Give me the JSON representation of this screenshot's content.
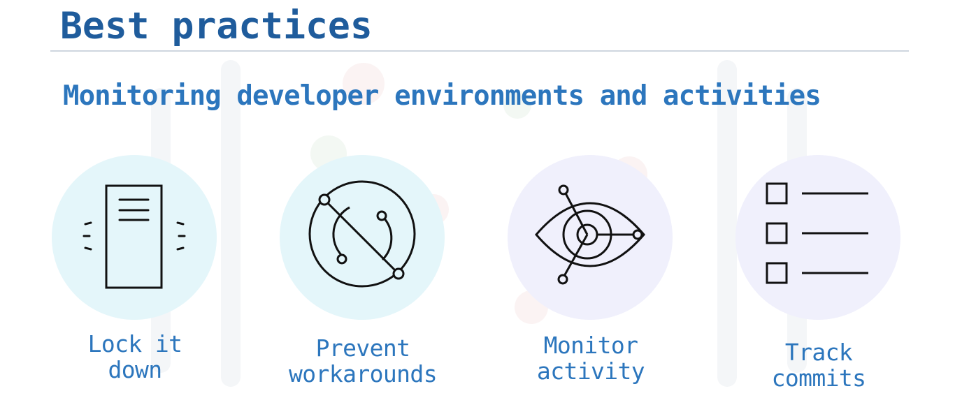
{
  "slide": {
    "title": "Best practices",
    "subtitle": "Monitoring developer environments and activities"
  },
  "colors": {
    "title": "#1f5c9c",
    "subtitle": "#2c76bd",
    "rule": "#cfd6df",
    "circle_cyan": "#e4f6fa",
    "circle_lavender": "#f0f0fc",
    "icon_stroke": "#111111"
  },
  "items": [
    {
      "icon": "server-lock-icon",
      "label_line1": "Lock it",
      "label_line2": "down"
    },
    {
      "icon": "prevent-workaround-icon",
      "label_line1": "Prevent",
      "label_line2": "workarounds"
    },
    {
      "icon": "eye-monitor-icon",
      "label_line1": "Monitor",
      "label_line2": "activity"
    },
    {
      "icon": "checklist-icon",
      "label_line1": "Track",
      "label_line2": "commits"
    }
  ]
}
